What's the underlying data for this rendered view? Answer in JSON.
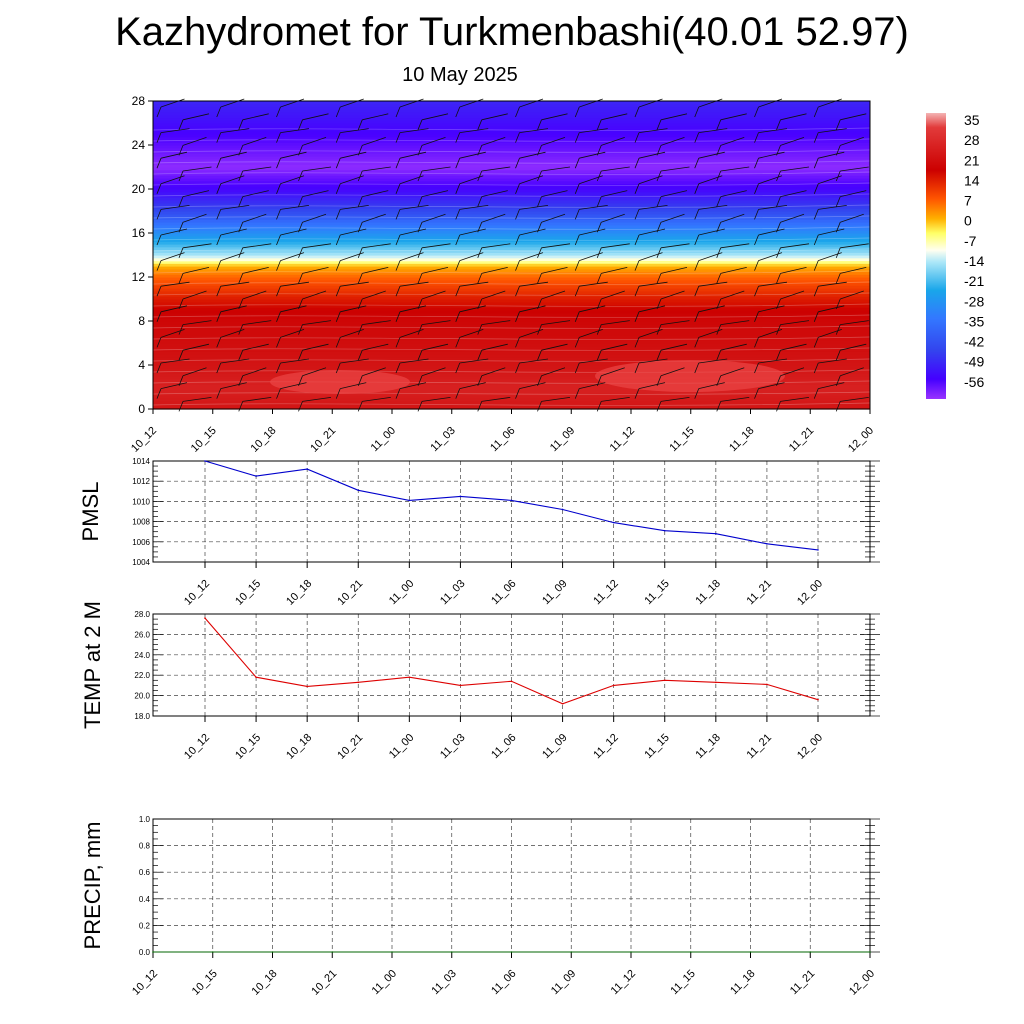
{
  "page": {
    "title": "Kazhydromet for Turkmenbashi(40.01 52.97)",
    "subtitle": "10 May 2025"
  },
  "chart_data": [
    {
      "type": "heatmap",
      "xlabel": "",
      "ylabel": "",
      "x_ticks": [
        "10_12",
        "10_15",
        "10_18",
        "10_21",
        "11_00",
        "11_03",
        "11_06",
        "11_09",
        "11_12",
        "11_15",
        "11_18",
        "11_21",
        "12_00"
      ],
      "y_ticks": [
        0,
        4,
        8,
        12,
        16,
        20,
        24,
        28
      ],
      "ylim": [
        0,
        28
      ],
      "colorbar": {
        "labels": [
          "35",
          "28",
          "21",
          "14",
          "7",
          "0",
          "-7",
          "-14",
          "-21",
          "-28",
          "-35",
          "-42",
          "-49",
          "-56"
        ],
        "range": [
          -63,
          42
        ]
      },
      "temperature_profile": [
        {
          "level": 0,
          "value": 26
        },
        {
          "level": 2,
          "value": 28
        },
        {
          "level": 4,
          "value": 26
        },
        {
          "level": 6,
          "value": 23
        },
        {
          "level": 8,
          "value": 20
        },
        {
          "level": 10,
          "value": 14
        },
        {
          "level": 12,
          "value": 6
        },
        {
          "level": 13,
          "value": 0
        },
        {
          "level": 14,
          "value": -16
        },
        {
          "level": 16,
          "value": -30
        },
        {
          "level": 18,
          "value": -44
        },
        {
          "level": 20,
          "value": -55
        },
        {
          "level": 22,
          "value": -62
        },
        {
          "level": 24,
          "value": -58
        },
        {
          "level": 28,
          "value": -50
        }
      ],
      "wind_barbs": true
    },
    {
      "type": "line",
      "ylabel": "PMSL",
      "x": [
        "10_12",
        "10_15",
        "10_18",
        "10_21",
        "11_00",
        "11_03",
        "11_06",
        "11_09",
        "11_12",
        "11_15",
        "11_18",
        "11_21",
        "12_00"
      ],
      "values": [
        1014.0,
        1012.5,
        1013.2,
        1011.1,
        1010.1,
        1010.5,
        1010.1,
        1009.2,
        1007.9,
        1007.1,
        1006.8,
        1005.8,
        1005.2
      ],
      "y_ticks": [
        "1004",
        "1006",
        "1008",
        "1010",
        "1012",
        "1014"
      ],
      "ylim": [
        1004,
        1014
      ],
      "color": "#0000cc",
      "grid": true
    },
    {
      "type": "line",
      "ylabel": "TEMP at 2 M",
      "x": [
        "10_12",
        "10_15",
        "10_18",
        "10_21",
        "11_00",
        "11_03",
        "11_06",
        "11_09",
        "11_12",
        "11_15",
        "11_18",
        "11_21",
        "12_00"
      ],
      "values": [
        27.6,
        21.8,
        20.9,
        21.3,
        21.8,
        21.0,
        21.4,
        19.2,
        21.0,
        21.5,
        21.3,
        21.1,
        19.6
      ],
      "y_ticks": [
        "18.0",
        "20.0",
        "22.0",
        "24.0",
        "26.0",
        "28.0"
      ],
      "ylim": [
        18,
        28
      ],
      "color": "#dd0000",
      "grid": true
    },
    {
      "type": "line",
      "ylabel": "PRECIP, mm",
      "x": [
        "10_12",
        "10_15",
        "10_18",
        "10_21",
        "11_00",
        "11_03",
        "11_06",
        "11_09",
        "11_12",
        "11_15",
        "11_18",
        "11_21",
        "12_00"
      ],
      "values": [
        0,
        0,
        0,
        0,
        0,
        0,
        0,
        0,
        0,
        0,
        0,
        0,
        0
      ],
      "y_ticks": [
        "0.0",
        "0.2",
        "0.4",
        "0.6",
        "0.8",
        "1.0"
      ],
      "ylim": [
        0,
        1
      ],
      "color": "#006600",
      "grid": true
    }
  ]
}
